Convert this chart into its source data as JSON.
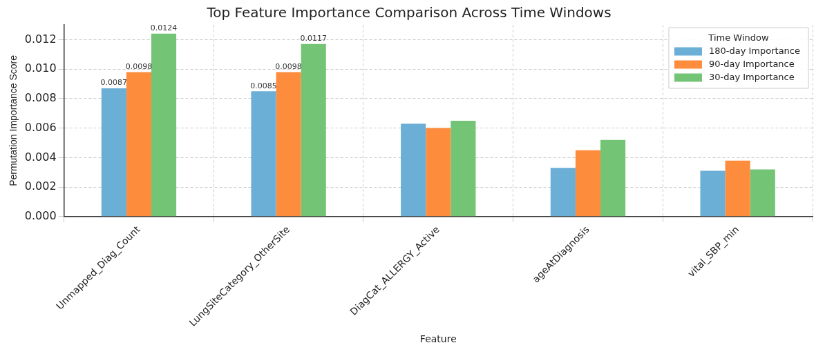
{
  "chart_data": {
    "type": "bar",
    "title": "Top Feature Importance Comparison Across Time Windows",
    "xlabel": "Feature",
    "ylabel": "Permutation Importance Score",
    "legend_title": "Time Window",
    "categories": [
      "Unmapped_Diag_Count",
      "LungSiteCategory_OtherSite",
      "DiagCat_ALLERGY_Active",
      "ageAtDiagnosis",
      "vital_SBP_min"
    ],
    "series": [
      {
        "name": "180-day Importance",
        "color": "#6baed6",
        "values": [
          0.0087,
          0.0085,
          0.0063,
          0.0033,
          0.0031
        ],
        "value_labels": [
          "0.0087",
          "0.0085",
          null,
          null,
          null
        ]
      },
      {
        "name": "90-day Importance",
        "color": "#fd8d3c",
        "values": [
          0.0098,
          0.0098,
          0.006,
          0.0045,
          0.0038
        ],
        "value_labels": [
          "0.0098",
          "0.0098",
          null,
          null,
          null
        ]
      },
      {
        "name": "30-day Importance",
        "color": "#74c476",
        "values": [
          0.0124,
          0.0117,
          0.0065,
          0.0052,
          0.0032
        ],
        "value_labels": [
          "0.0124",
          "0.0117",
          null,
          null,
          null
        ]
      }
    ],
    "ylim": [
      0,
      0.013
    ],
    "yticks": [
      "0.000",
      "0.002",
      "0.004",
      "0.006",
      "0.008",
      "0.010",
      "0.012"
    ],
    "grid": true,
    "legend": "top right"
  }
}
